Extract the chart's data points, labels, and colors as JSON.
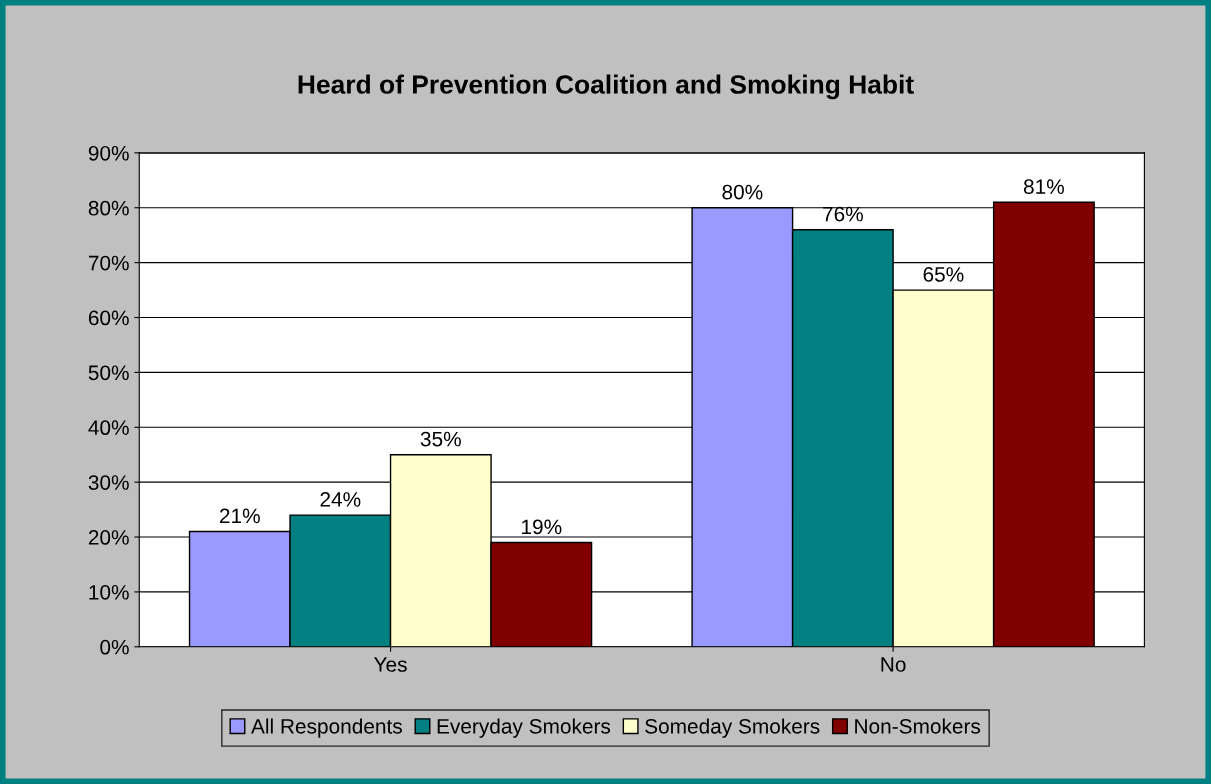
{
  "chart_data": {
    "type": "bar",
    "title": "Heard of Prevention Coalition and Smoking Habit",
    "categories": [
      "Yes",
      "No"
    ],
    "series": [
      {
        "name": "All Respondents",
        "color": "#9999ff",
        "values": [
          21,
          80
        ],
        "value_labels": [
          "21%",
          "80%"
        ]
      },
      {
        "name": "Everyday Smokers",
        "color": "#008080",
        "values": [
          24,
          76
        ],
        "value_labels": [
          "24%",
          "76%"
        ]
      },
      {
        "name": "Someday Smokers",
        "color": "#ffffcc",
        "values": [
          35,
          65
        ],
        "value_labels": [
          "35%",
          "65%"
        ]
      },
      {
        "name": "Non-Smokers",
        "color": "#800000",
        "values": [
          19,
          81
        ],
        "value_labels": [
          "19%",
          "81%"
        ]
      }
    ],
    "ylim": [
      0,
      90
    ],
    "yticks": [
      {
        "value": 0,
        "label": "0%"
      },
      {
        "value": 10,
        "label": "10%"
      },
      {
        "value": 20,
        "label": "20%"
      },
      {
        "value": 30,
        "label": "30%"
      },
      {
        "value": 40,
        "label": "40%"
      },
      {
        "value": 50,
        "label": "50%"
      },
      {
        "value": 60,
        "label": "60%"
      },
      {
        "value": 70,
        "label": "70%"
      },
      {
        "value": 80,
        "label": "80%"
      },
      {
        "value": 90,
        "label": "90%"
      }
    ],
    "grid": "y",
    "legend": "bottom"
  }
}
